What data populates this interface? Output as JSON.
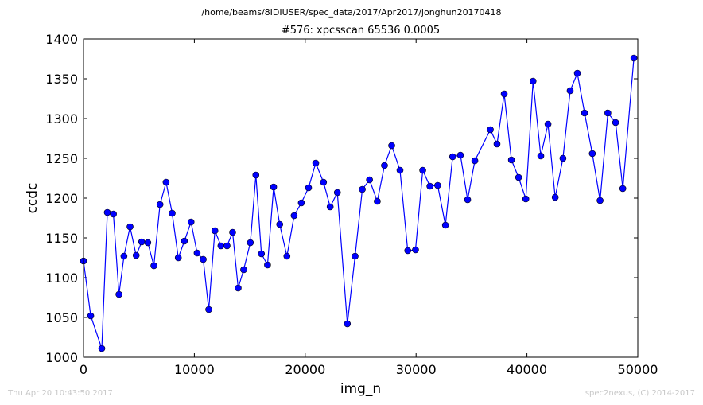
{
  "suptitle": "/home/beams/8IDIUSER/spec_data/2017/Apr2017/jonghun20170418",
  "footer": {
    "timestamp": "Thu Apr 20 10:43:50 2017",
    "credit": "spec2nexus, (C) 2014-2017"
  },
  "colors": {
    "series": "#0000ff",
    "axes": "#000000"
  },
  "chart_data": {
    "type": "line",
    "title": "#576: xpcsscan 65536 0.0005",
    "xlabel": "img_n",
    "ylabel": "ccdc",
    "xlim": [
      0,
      50000
    ],
    "ylim": [
      1000,
      1400
    ],
    "xticks": [
      0,
      10000,
      20000,
      30000,
      40000,
      50000
    ],
    "yticks": [
      1000,
      1050,
      1100,
      1150,
      1200,
      1250,
      1300,
      1350,
      1400
    ],
    "grid": false,
    "marker": "circle",
    "series": [
      {
        "x": [
          0,
          650,
          1650,
          2150,
          2700,
          3200,
          3650,
          4200,
          4750,
          5250,
          5800,
          6350,
          6900,
          7450,
          8000,
          8550,
          9100,
          9700,
          10250,
          10800,
          11300,
          11850,
          12400,
          12950,
          13450,
          13950,
          14450,
          15050,
          15550,
          16050,
          16600,
          17150,
          17700,
          18350,
          19000,
          19650,
          20300,
          20950,
          21650,
          22250,
          22900,
          23800,
          24500,
          25150,
          25800,
          26500,
          27150,
          27800,
          28550,
          29250,
          29950,
          30600,
          31250,
          31950,
          32650,
          33300,
          34000,
          34650,
          35300,
          36700,
          37300,
          37950,
          38600,
          39250,
          39900,
          40550,
          41250,
          41900,
          42550,
          43250,
          43900,
          44550,
          45200,
          45900,
          46600,
          47300,
          48000,
          48650,
          49650
        ],
        "y": [
          1121,
          1052,
          1011,
          1182,
          1180,
          1079,
          1127,
          1164,
          1128,
          1145,
          1144,
          1115,
          1192,
          1220,
          1181,
          1125,
          1146,
          1170,
          1131,
          1123,
          1060,
          1159,
          1140,
          1140,
          1157,
          1087,
          1110,
          1144,
          1229,
          1130,
          1116,
          1214,
          1167,
          1127,
          1178,
          1194,
          1213,
          1244,
          1220,
          1189,
          1207,
          1042,
          1127,
          1211,
          1223,
          1196,
          1241,
          1266,
          1235,
          1134,
          1135,
          1235,
          1215,
          1216,
          1166,
          1252,
          1254,
          1198,
          1247,
          1286,
          1268,
          1331,
          1248,
          1226,
          1199,
          1347,
          1253,
          1293,
          1201,
          1250,
          1335,
          1357,
          1307,
          1256,
          1197,
          1307,
          1295,
          1212,
          1376
        ]
      }
    ]
  }
}
